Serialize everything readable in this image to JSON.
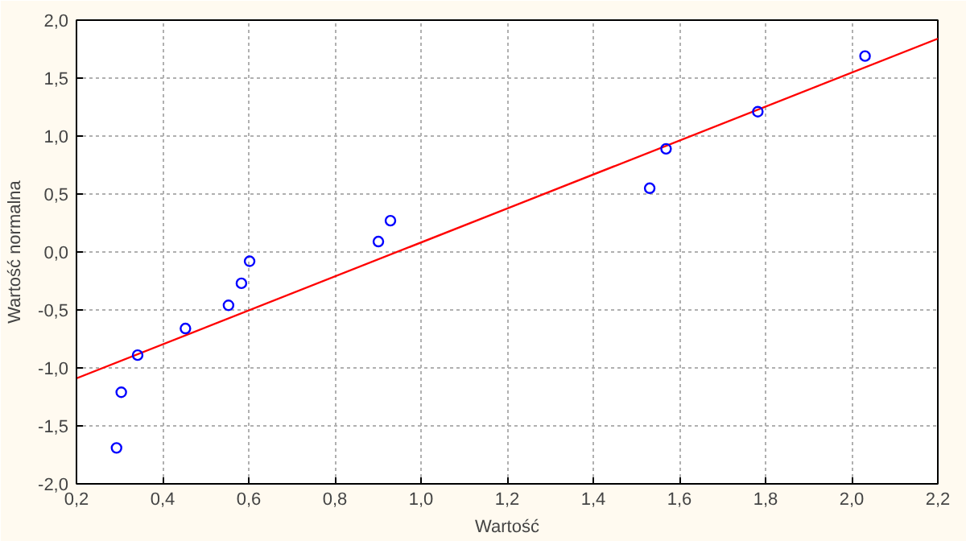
{
  "chart_data": {
    "type": "scatter",
    "xlabel": "Wartość",
    "ylabel": "Wartość normalna",
    "xlim": [
      0.2,
      2.2
    ],
    "ylim": [
      -2.0,
      2.0
    ],
    "xticks": [
      {
        "value": 0.2,
        "label": "0,2"
      },
      {
        "value": 0.4,
        "label": "0,4"
      },
      {
        "value": 0.6,
        "label": "0,6"
      },
      {
        "value": 0.8,
        "label": "0,8"
      },
      {
        "value": 1.0,
        "label": "1,0"
      },
      {
        "value": 1.2,
        "label": "1,2"
      },
      {
        "value": 1.4,
        "label": "1,4"
      },
      {
        "value": 1.6,
        "label": "1,6"
      },
      {
        "value": 1.8,
        "label": "1,8"
      },
      {
        "value": 2.0,
        "label": "2,0"
      },
      {
        "value": 2.2,
        "label": "2,2"
      }
    ],
    "yticks": [
      {
        "value": -2.0,
        "label": "-2,0"
      },
      {
        "value": -1.5,
        "label": "-1,5"
      },
      {
        "value": -1.0,
        "label": "-1,0"
      },
      {
        "value": -0.5,
        "label": "-0,5"
      },
      {
        "value": 0.0,
        "label": "0,0"
      },
      {
        "value": 0.5,
        "label": "0,5"
      },
      {
        "value": 1.0,
        "label": "1,0"
      },
      {
        "value": 1.5,
        "label": "1,5"
      },
      {
        "value": 2.0,
        "label": "2,0"
      }
    ],
    "grid": true,
    "series": [
      {
        "marker": "circle",
        "color": "#0000ff",
        "x": [
          0.293,
          0.304,
          0.342,
          0.453,
          0.553,
          0.583,
          0.602,
          0.901,
          0.929,
          1.531,
          1.569,
          1.782,
          2.031
        ],
        "values": [
          -1.69,
          -1.21,
          -0.89,
          -0.66,
          -0.46,
          -0.27,
          -0.08,
          0.09,
          0.27,
          0.55,
          0.89,
          1.21,
          1.69
        ]
      },
      {
        "type": "line",
        "marker": "none",
        "color": "#ff0000",
        "x": [
          0.2,
          2.2
        ],
        "values": [
          -1.09,
          1.84
        ]
      }
    ]
  }
}
